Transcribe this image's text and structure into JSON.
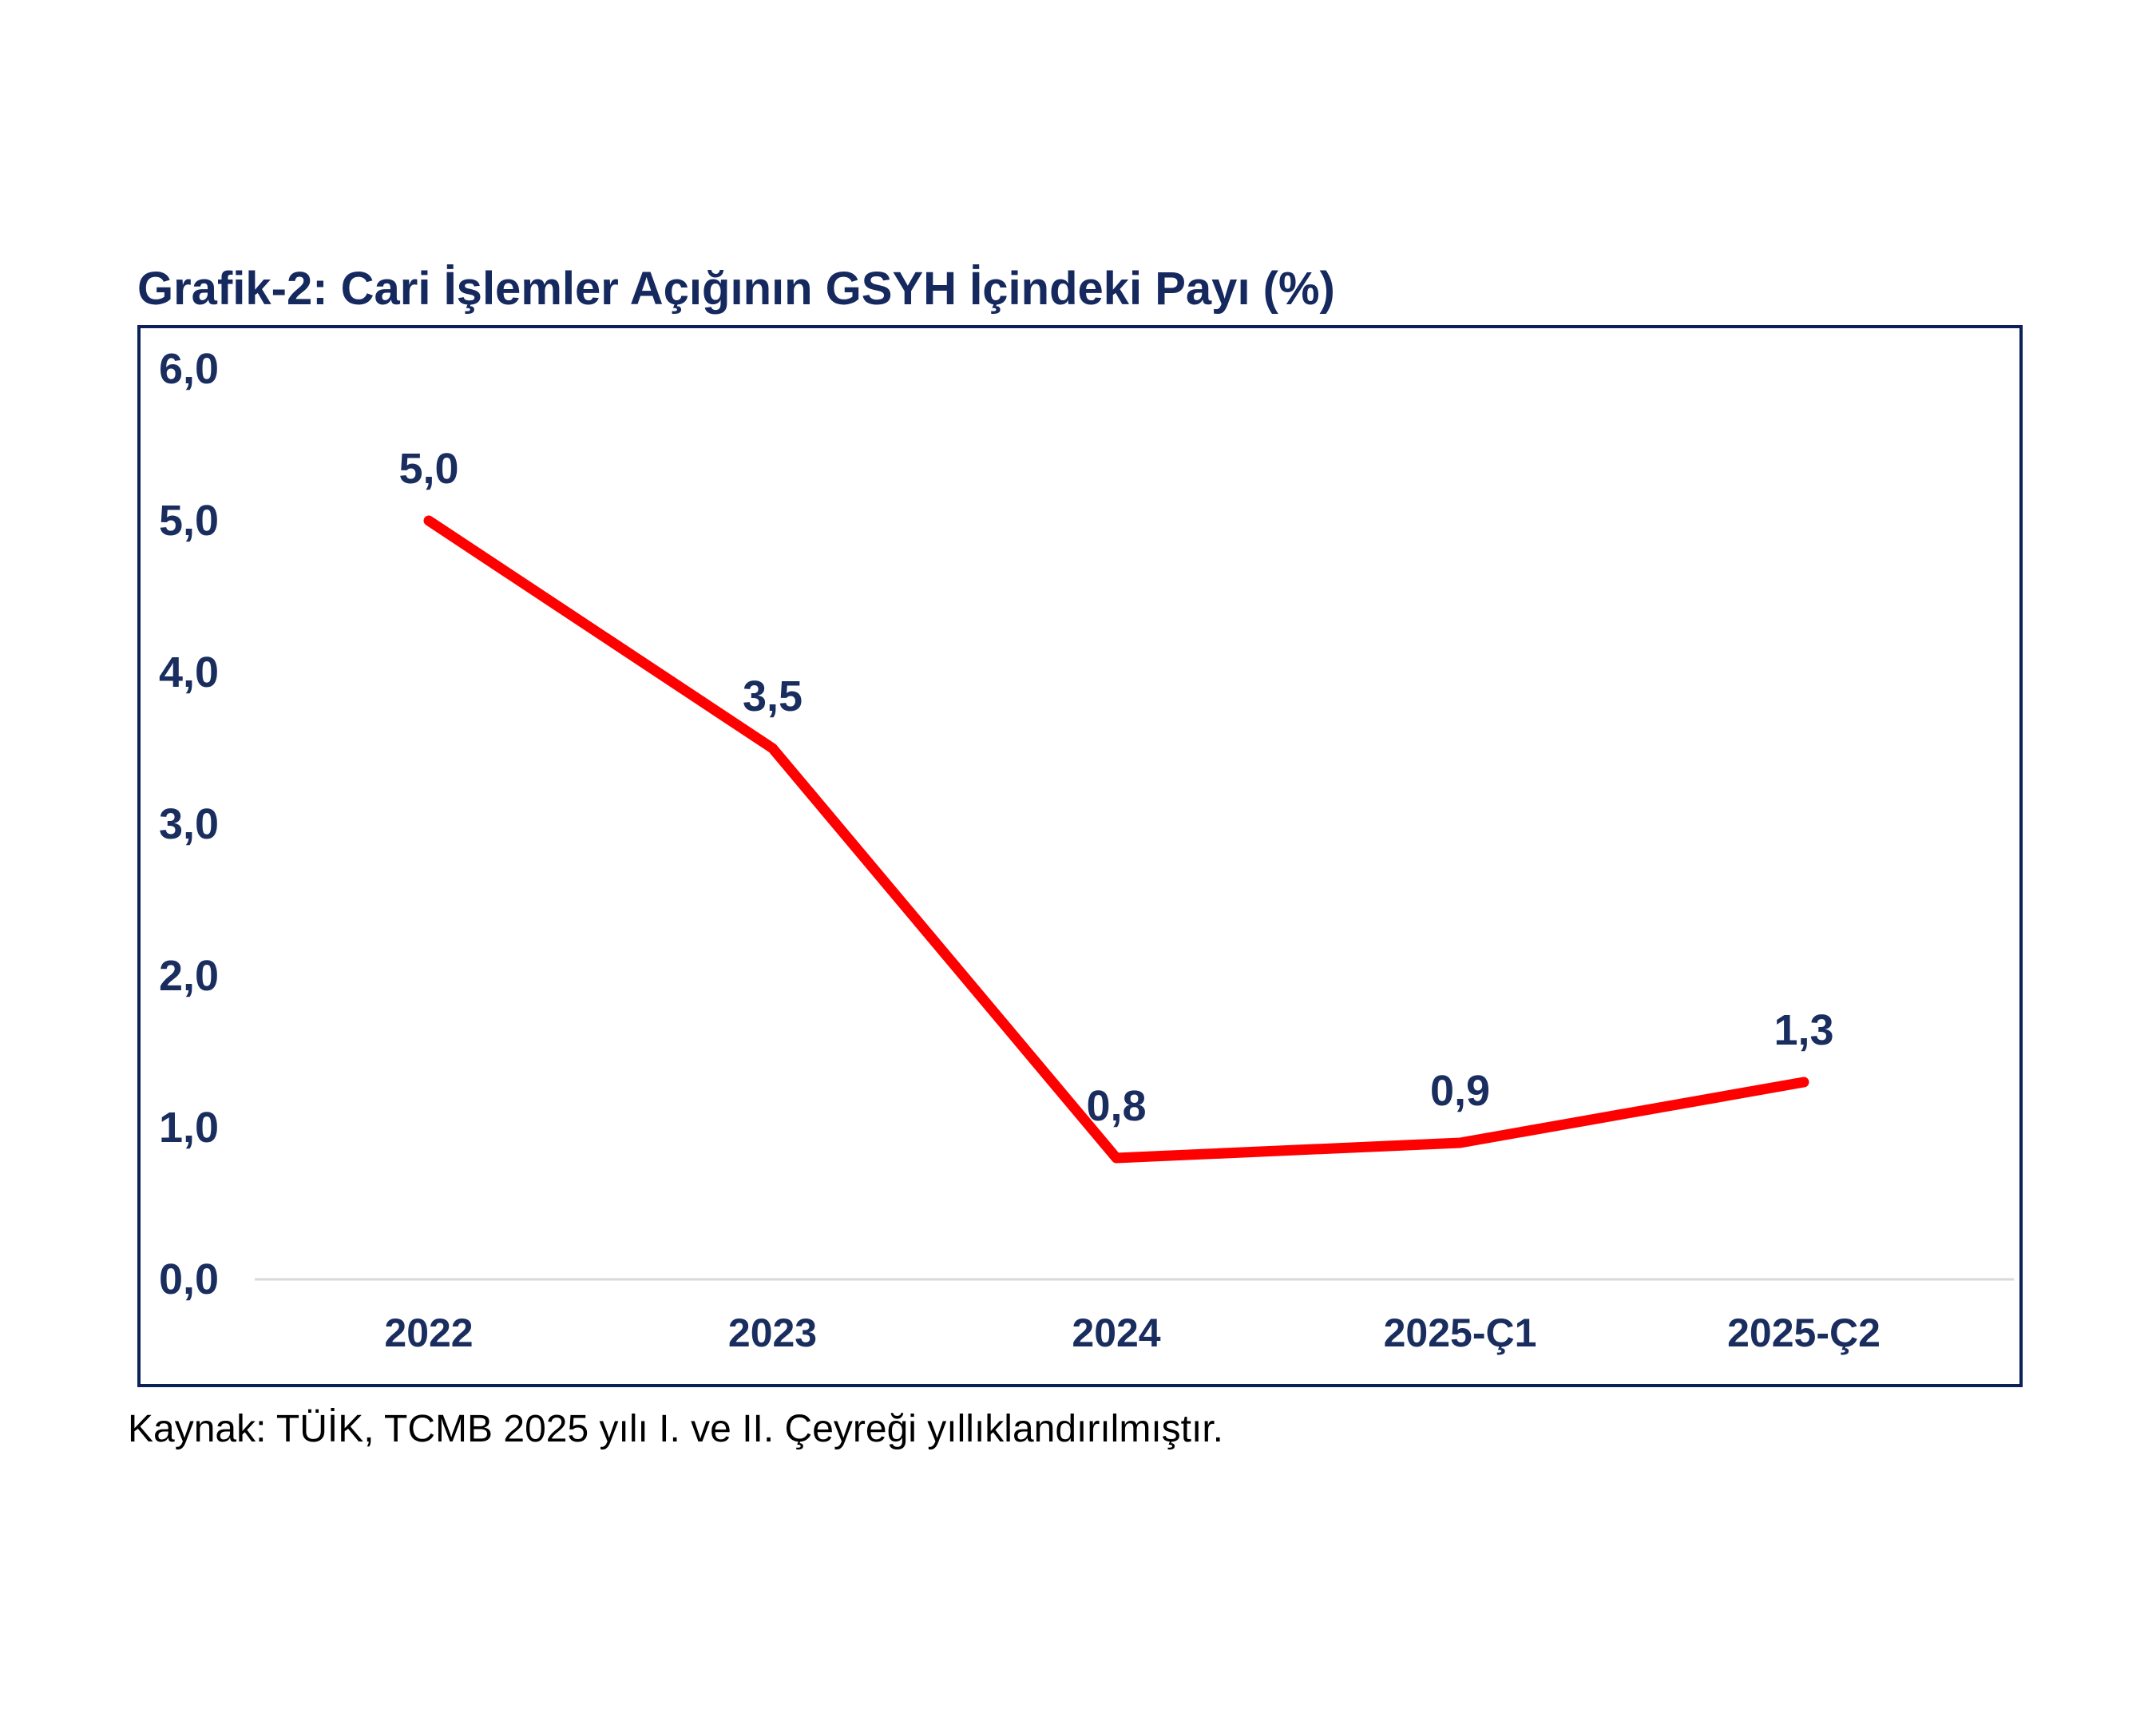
{
  "title": "Grafik-2: Cari İşlemler Açığının GSYH İçindeki Payı (%)",
  "source": "Kaynak: TÜİK, TCMB 2025 yılı I. ve II. Çeyreği yıllıklandırılmıştır.",
  "colors": {
    "navy_text": "#1a2d5f",
    "frame_border": "#0b2259",
    "line": "#ff0000",
    "axis_baseline": "#d9d9d9",
    "background": "#ffffff"
  },
  "chart_data": {
    "type": "line",
    "categories": [
      "2022",
      "2023",
      "2024",
      "2025-Ç1",
      "2025-Ç2"
    ],
    "values": [
      5.0,
      3.5,
      0.8,
      0.9,
      1.3
    ],
    "point_labels": [
      "5,0",
      "3,5",
      "0,8",
      "0,9",
      "1,3"
    ],
    "series": [
      {
        "name": "Cari İşlemler Açığının GSYH İçindeki Payı (%)",
        "values": [
          5.0,
          3.5,
          0.8,
          0.9,
          1.3
        ]
      }
    ],
    "y_ticks": [
      {
        "label": "6,0",
        "value": 6.0
      },
      {
        "label": "5,0",
        "value": 5.0
      },
      {
        "label": "4,0",
        "value": 4.0
      },
      {
        "label": "3,0",
        "value": 3.0
      },
      {
        "label": "2,0",
        "value": 2.0
      },
      {
        "label": "1,0",
        "value": 1.0
      },
      {
        "label": "0,0",
        "value": 0.0
      }
    ],
    "ylim": [
      0,
      6
    ],
    "xlabel": "",
    "ylabel": "",
    "grid": false,
    "legend": false,
    "line_color": "#ff0000",
    "data_label_color": "#1a2d5f",
    "baseline_color": "#d9d9d9"
  }
}
